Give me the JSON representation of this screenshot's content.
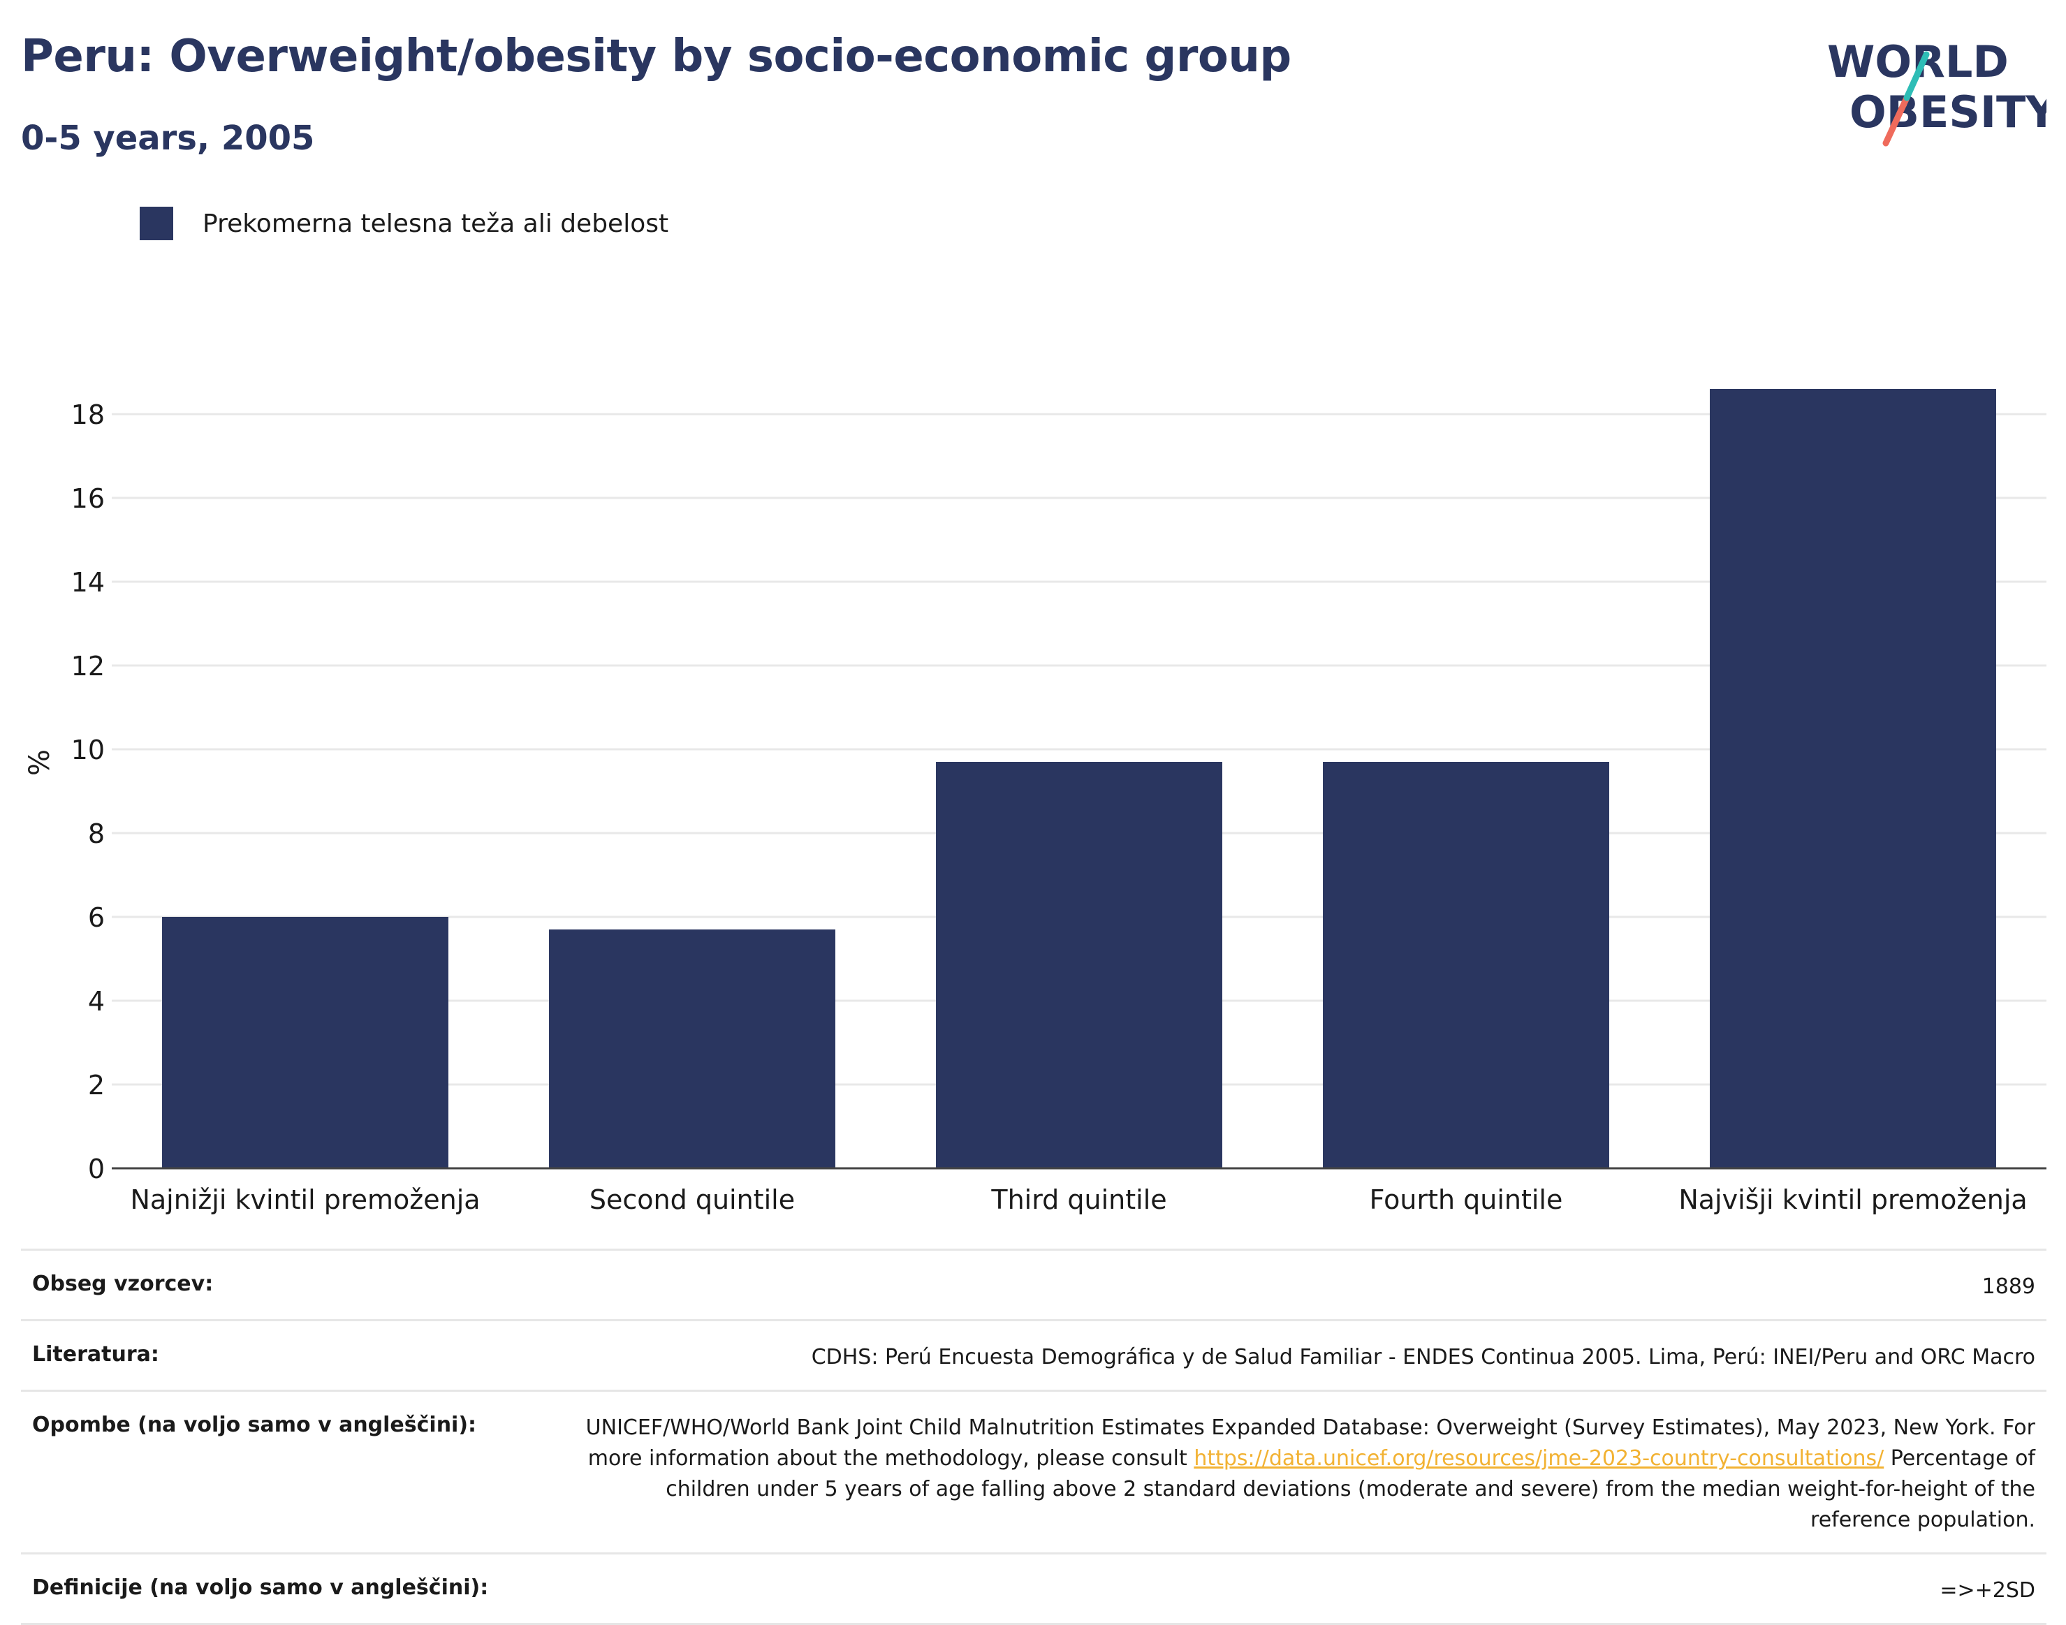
{
  "header": {
    "title": "Peru: Overweight/obesity by socio-economic group",
    "subtitle": "0-5 years, 2005"
  },
  "logo": {
    "line1": "WORLD",
    "line2": "OBESITY"
  },
  "colors": {
    "bar": "#2a3660",
    "title": "#2a3660",
    "logo_teal": "#2ebdb6",
    "logo_coral": "#ef6b5c",
    "link": "#f2b233"
  },
  "chart_data": {
    "type": "bar",
    "categories": [
      "Najnižji kvintil premoženja",
      "Second quintile",
      "Third quintile",
      "Fourth quintile",
      "Najvišji kvintil premoženja"
    ],
    "series": [
      {
        "name": "Prekomerna telesna teža ali debelost",
        "values": [
          6.0,
          5.7,
          9.7,
          9.7,
          18.6
        ]
      }
    ],
    "ylabel": "%",
    "ylim": [
      0,
      20
    ],
    "yticks": [
      0,
      2,
      4,
      6,
      8,
      10,
      12,
      14,
      16,
      18
    ],
    "grid": true,
    "legend": "top-left"
  },
  "meta": [
    {
      "label": "Obseg vzorcev:",
      "value": "1889"
    },
    {
      "label": "Literatura:",
      "value": "CDHS: Perú Encuesta Demográfica y de Salud Familiar - ENDES Continua 2005. Lima, Perú: INEI/Peru and ORC Macro"
    },
    {
      "label": "Opombe (na voljo samo v angleščini):",
      "value_before": "UNICEF/WHO/World Bank Joint Child Malnutrition Estimates Expanded Database: Overweight (Survey Estimates), May 2023, New York. For more information about the methodology, please consult ",
      "link": "https://data.unicef.org/resources/jme-2023-country-consultations/",
      "value_after": " Percentage of children under 5 years of age falling above 2 standard deviations (moderate and severe) from the median weight-for-height of the reference population."
    },
    {
      "label": "Definicije (na voljo samo v angleščini):",
      "value": "=>+2SD"
    }
  ]
}
